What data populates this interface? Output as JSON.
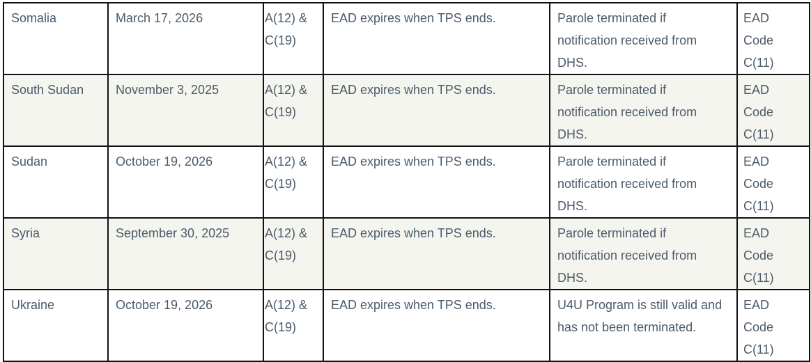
{
  "table": {
    "rows": [
      {
        "country": "Somalia",
        "date": "March 17, 2026",
        "category": "A(12) & C(19)",
        "ead": "EAD expires when TPS ends.",
        "parole": "Parole terminated if notification received from DHS.",
        "code": "EAD Code C(11)"
      },
      {
        "country": "South Sudan",
        "date": "November 3, 2025",
        "category": "A(12) & C(19)",
        "ead": "EAD expires when TPS ends.",
        "parole": "Parole terminated if notification received from DHS.",
        "code": "EAD Code C(11)"
      },
      {
        "country": "Sudan",
        "date": "October 19, 2026",
        "category": "A(12) & C(19)",
        "ead": "EAD expires when TPS ends.",
        "parole": "Parole terminated if notification received from DHS.",
        "code": "EAD Code C(11)"
      },
      {
        "country": "Syria",
        "date": "September 30, 2025",
        "category": "A(12) & C(19)",
        "ead": "EAD expires when TPS ends.",
        "parole": "Parole terminated if notification received from DHS.",
        "code": "EAD Code C(11)"
      },
      {
        "country": "Ukraine",
        "date": "October 19, 2026",
        "category": "A(12) & C(19)",
        "ead": "EAD expires when TPS ends.",
        "parole": "U4U Program is still valid and has not been terminated.",
        "code": "EAD Code C(11)"
      }
    ]
  }
}
